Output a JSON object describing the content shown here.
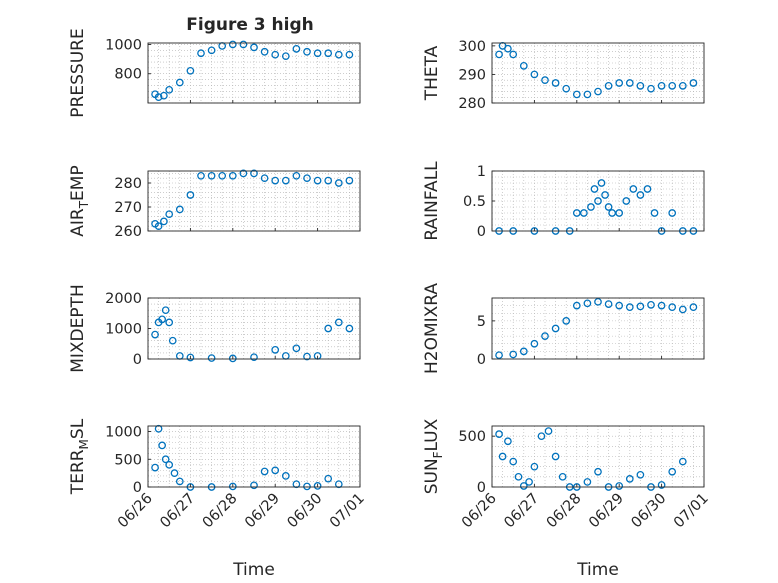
{
  "figure": {
    "title": "Figure 3 high"
  },
  "colors": {
    "marker": "#0072BD",
    "axis": "#262626",
    "grid": "#b0b0b0",
    "background": "#ffffff"
  },
  "chart_data": [
    {
      "type": "scatter",
      "title": "Figure 3 high",
      "ylabel": "PRESSURE",
      "xlabel": "",
      "xlim": [
        "06/26",
        "07/01"
      ],
      "ylim": [
        600,
        1010
      ],
      "yticks": [
        "800",
        "1000"
      ],
      "grid": true,
      "x": [
        "06/26 04:00",
        "06/26 06:00",
        "06/26 09:00",
        "06/26 12:00",
        "06/26 18:00",
        "06/27 00:00",
        "06/27 06:00",
        "06/27 12:00",
        "06/27 18:00",
        "06/28 00:00",
        "06/28 06:00",
        "06/28 12:00",
        "06/28 18:00",
        "06/29 00:00",
        "06/29 06:00",
        "06/29 12:00",
        "06/29 18:00",
        "06/30 00:00",
        "06/30 06:00",
        "06/30 12:00",
        "06/30 18:00"
      ],
      "y": [
        660,
        640,
        650,
        690,
        740,
        820,
        940,
        960,
        990,
        1000,
        1000,
        980,
        950,
        930,
        920,
        970,
        950,
        940,
        940,
        930,
        930
      ]
    },
    {
      "type": "scatter",
      "ylabel": "THETA",
      "xlabel": "",
      "xlim": [
        "06/26",
        "07/01"
      ],
      "ylim": [
        280,
        301
      ],
      "yticks": [
        "280",
        "290",
        "300"
      ],
      "grid": true,
      "x": [
        "06/26 04:00",
        "06/26 06:00",
        "06/26 09:00",
        "06/26 12:00",
        "06/26 18:00",
        "06/27 00:00",
        "06/27 06:00",
        "06/27 12:00",
        "06/27 18:00",
        "06/28 00:00",
        "06/28 06:00",
        "06/28 12:00",
        "06/28 18:00",
        "06/29 00:00",
        "06/29 06:00",
        "06/29 12:00",
        "06/29 18:00",
        "06/30 00:00",
        "06/30 06:00",
        "06/30 12:00",
        "06/30 18:00"
      ],
      "y": [
        297,
        300,
        299,
        297,
        293,
        290,
        288,
        287,
        285,
        283,
        283,
        284,
        286,
        287,
        287,
        286,
        285,
        286,
        286,
        286,
        287
      ]
    },
    {
      "type": "scatter",
      "ylabel": "AIR_TEMP",
      "xlabel": "",
      "xlim": [
        "06/26",
        "07/01"
      ],
      "ylim": [
        260,
        285
      ],
      "yticks": [
        "260",
        "270",
        "280"
      ],
      "grid": true,
      "x": [
        "06/26 04:00",
        "06/26 06:00",
        "06/26 09:00",
        "06/26 12:00",
        "06/26 18:00",
        "06/27 00:00",
        "06/27 06:00",
        "06/27 12:00",
        "06/27 18:00",
        "06/28 00:00",
        "06/28 06:00",
        "06/28 12:00",
        "06/28 18:00",
        "06/29 00:00",
        "06/29 06:00",
        "06/29 12:00",
        "06/29 18:00",
        "06/30 00:00",
        "06/30 06:00",
        "06/30 12:00",
        "06/30 18:00"
      ],
      "y": [
        263,
        262,
        264,
        267,
        269,
        275,
        283,
        283,
        283,
        283,
        284,
        284,
        282,
        281,
        281,
        283,
        282,
        281,
        281,
        280,
        281
      ]
    },
    {
      "type": "scatter",
      "ylabel": "RAINFALL",
      "xlabel": "",
      "xlim": [
        "06/26",
        "07/01"
      ],
      "ylim": [
        0,
        1
      ],
      "yticks": [
        "0",
        "0.5",
        "1"
      ],
      "grid": true,
      "x": [
        "06/26 04:00",
        "06/26 12:00",
        "06/27 00:00",
        "06/27 12:00",
        "06/27 20:00",
        "06/28 00:00",
        "06/28 04:00",
        "06/28 08:00",
        "06/28 10:00",
        "06/28 12:00",
        "06/28 14:00",
        "06/28 16:00",
        "06/28 18:00",
        "06/28 20:00",
        "06/29 00:00",
        "06/29 04:00",
        "06/29 08:00",
        "06/29 12:00",
        "06/29 16:00",
        "06/29 20:00",
        "06/30 00:00",
        "06/30 06:00",
        "06/30 12:00",
        "06/30 18:00"
      ],
      "y": [
        0,
        0,
        0,
        0,
        0,
        0.3,
        0.3,
        0.4,
        0.7,
        0.5,
        0.8,
        0.6,
        0.4,
        0.3,
        0.3,
        0.5,
        0.7,
        0.6,
        0.7,
        0.3,
        0,
        0.3,
        0,
        0
      ]
    },
    {
      "type": "scatter",
      "ylabel": "MIXDEPTH",
      "xlabel": "",
      "xlim": [
        "06/26",
        "07/01"
      ],
      "ylim": [
        0,
        2000
      ],
      "yticks": [
        "0",
        "1000",
        "2000"
      ],
      "grid": true,
      "x": [
        "06/26 04:00",
        "06/26 06:00",
        "06/26 08:00",
        "06/26 10:00",
        "06/26 12:00",
        "06/26 14:00",
        "06/26 18:00",
        "06/27 00:00",
        "06/27 12:00",
        "06/28 00:00",
        "06/28 12:00",
        "06/29 00:00",
        "06/29 06:00",
        "06/29 12:00",
        "06/29 18:00",
        "06/30 00:00",
        "06/30 06:00",
        "06/30 12:00",
        "06/30 18:00"
      ],
      "y": [
        800,
        1200,
        1300,
        1600,
        1200,
        600,
        100,
        50,
        30,
        20,
        60,
        300,
        100,
        350,
        80,
        100,
        1000,
        1200,
        1000
      ]
    },
    {
      "type": "scatter",
      "ylabel": "H2OMIXRA",
      "xlabel": "",
      "xlim": [
        "06/26",
        "07/01"
      ],
      "ylim": [
        0,
        8
      ],
      "yticks": [
        "0",
        "5"
      ],
      "grid": true,
      "x": [
        "06/26 04:00",
        "06/26 12:00",
        "06/26 18:00",
        "06/27 00:00",
        "06/27 06:00",
        "06/27 12:00",
        "06/27 18:00",
        "06/28 00:00",
        "06/28 06:00",
        "06/28 12:00",
        "06/28 18:00",
        "06/29 00:00",
        "06/29 06:00",
        "06/29 12:00",
        "06/29 18:00",
        "06/30 00:00",
        "06/30 06:00",
        "06/30 12:00",
        "06/30 18:00"
      ],
      "y": [
        0.5,
        0.6,
        1,
        2,
        3,
        4,
        5,
        7,
        7.3,
        7.5,
        7.2,
        7,
        6.8,
        6.9,
        7.1,
        7,
        6.8,
        6.5,
        6.8
      ]
    },
    {
      "type": "scatter",
      "ylabel": "TERR_MSL",
      "xlabel": "Time",
      "xlim": [
        "06/26",
        "07/01"
      ],
      "ylim": [
        0,
        1100
      ],
      "yticks": [
        "0",
        "500",
        "1000"
      ],
      "grid": true,
      "xticks": [
        "06/26",
        "06/27",
        "06/28",
        "06/29",
        "06/30",
        "07/01"
      ],
      "x": [
        "06/26 04:00",
        "06/26 06:00",
        "06/26 08:00",
        "06/26 10:00",
        "06/26 12:00",
        "06/26 15:00",
        "06/26 18:00",
        "06/27 00:00",
        "06/27 12:00",
        "06/28 00:00",
        "06/28 12:00",
        "06/28 18:00",
        "06/29 00:00",
        "06/29 06:00",
        "06/29 12:00",
        "06/29 18:00",
        "06/30 00:00",
        "06/30 06:00",
        "06/30 12:00"
      ],
      "y": [
        350,
        1050,
        750,
        500,
        400,
        250,
        100,
        0,
        0,
        10,
        30,
        280,
        300,
        200,
        50,
        10,
        20,
        150,
        50
      ]
    },
    {
      "type": "scatter",
      "ylabel": "SUN_FLUX",
      "xlabel": "Time",
      "xlim": [
        "06/26",
        "07/01"
      ],
      "ylim": [
        0,
        600
      ],
      "yticks": [
        "0",
        "500"
      ],
      "grid": true,
      "xticks": [
        "06/26",
        "06/27",
        "06/28",
        "06/29",
        "06/30",
        "07/01"
      ],
      "x": [
        "06/26 04:00",
        "06/26 06:00",
        "06/26 09:00",
        "06/26 12:00",
        "06/26 15:00",
        "06/26 18:00",
        "06/26 21:00",
        "06/27 00:00",
        "06/27 04:00",
        "06/27 08:00",
        "06/27 12:00",
        "06/27 16:00",
        "06/27 20:00",
        "06/28 00:00",
        "06/28 06:00",
        "06/28 12:00",
        "06/28 18:00",
        "06/29 00:00",
        "06/29 06:00",
        "06/29 12:00",
        "06/29 18:00",
        "06/30 00:00",
        "06/30 06:00",
        "06/30 12:00"
      ],
      "y": [
        520,
        300,
        450,
        250,
        100,
        10,
        50,
        200,
        500,
        550,
        300,
        100,
        0,
        0,
        50,
        150,
        0,
        10,
        80,
        120,
        0,
        20,
        150,
        250
      ]
    }
  ]
}
